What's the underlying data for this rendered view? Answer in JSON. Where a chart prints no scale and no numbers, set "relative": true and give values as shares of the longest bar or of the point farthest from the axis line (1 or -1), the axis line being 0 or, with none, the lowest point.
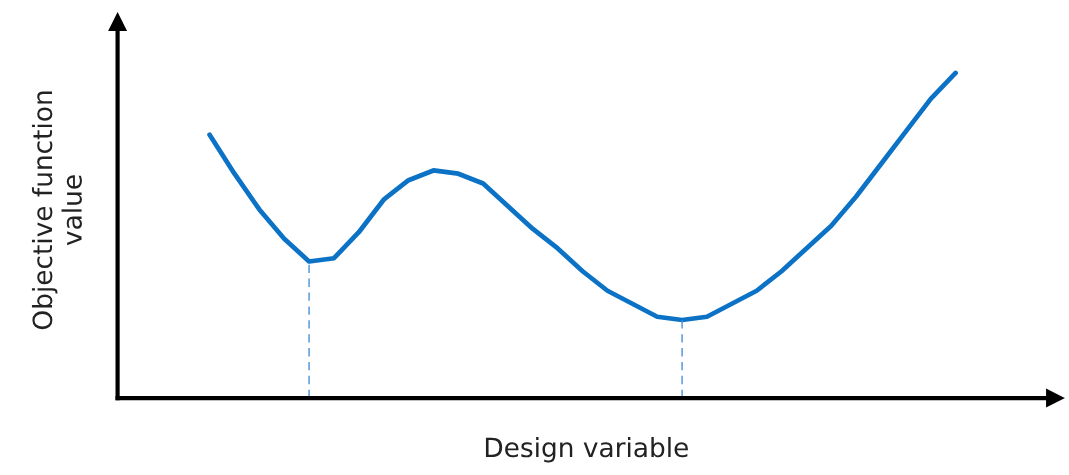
{
  "chart_data": {
    "type": "line",
    "relative": true,
    "xlabel": "Design variable",
    "ylabel": "Objective function\nvalue",
    "categories": [
      null,
      null,
      null,
      null,
      null,
      null,
      null,
      null,
      null,
      null,
      null,
      null,
      null,
      null,
      null,
      null,
      null,
      null,
      null,
      null,
      null,
      null,
      null,
      null,
      null,
      null,
      null,
      null,
      null,
      null,
      null
    ],
    "series": [
      {
        "color": "#0b72c6",
        "values": [
          0.81,
          0.69,
          0.58,
          0.49,
          0.42,
          0.43,
          0.51,
          0.61,
          0.67,
          0.7,
          0.69,
          0.66,
          0.59,
          0.52,
          0.46,
          0.39,
          0.33,
          0.29,
          0.25,
          0.24,
          0.25,
          0.29,
          0.33,
          0.39,
          0.46,
          0.53,
          0.62,
          0.72,
          0.82,
          0.92,
          1.0
        ]
      }
    ],
    "legend": false,
    "tick_labels": false,
    "marker": "none",
    "line_style": "solid"
  }
}
